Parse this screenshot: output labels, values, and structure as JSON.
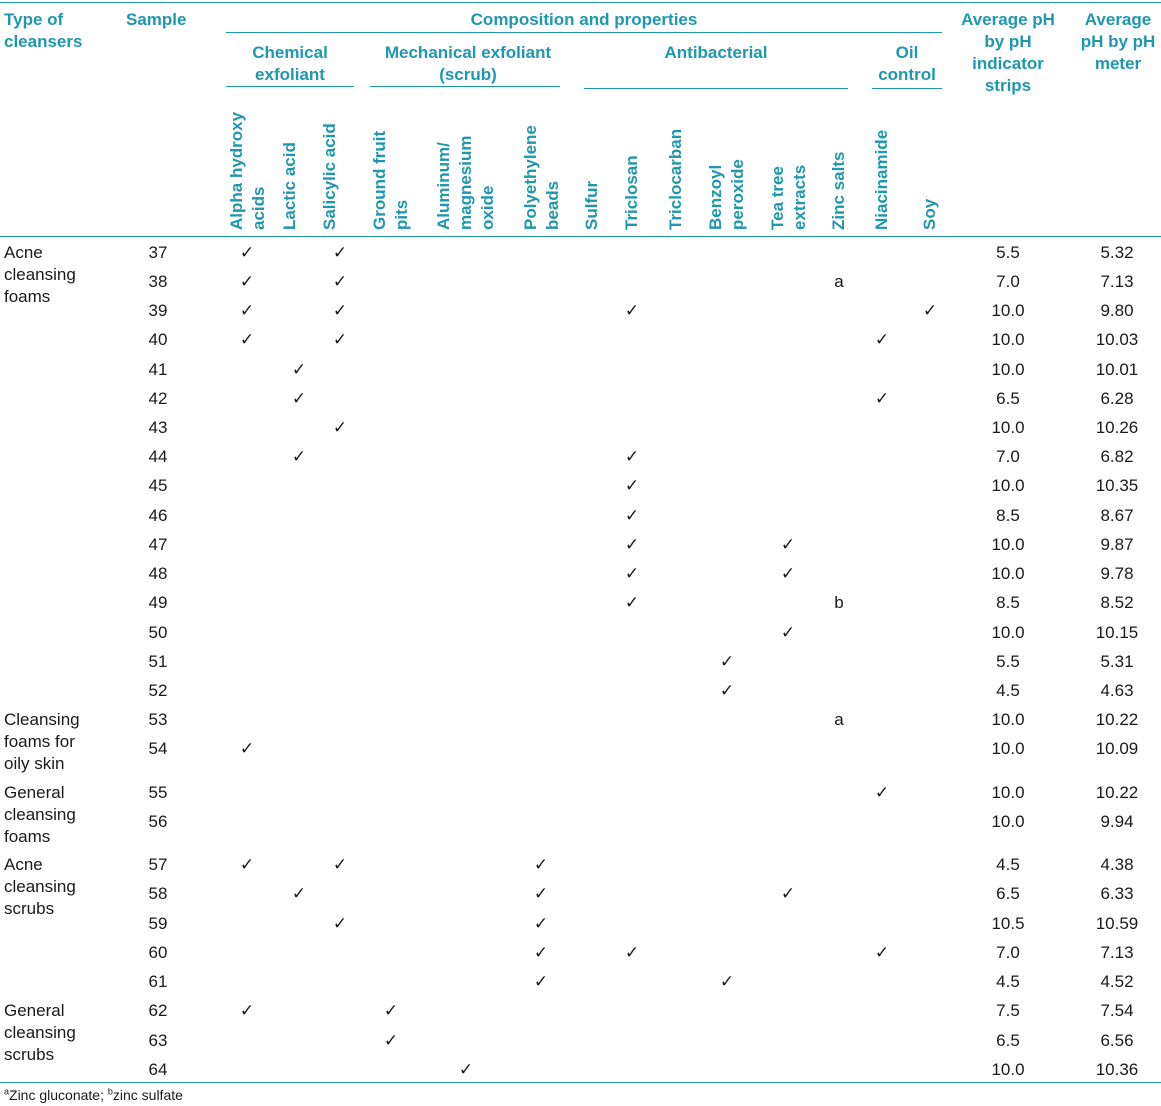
{
  "header": {
    "type_col": "Type of cleansers",
    "sample_col": "Sample",
    "composition": "Composition and properties",
    "groups": {
      "chemical": "Chemical exfoliant",
      "mechanical": "Mechanical exfoliant (scrub)",
      "antibacterial": "Antibacterial",
      "oil": "Oil control"
    },
    "ph_strips": "Average pH by pH indicator strips",
    "ph_meter": "Average pH by pH meter"
  },
  "ingredients": [
    "Alpha hydroxy acids",
    "Lactic acid",
    "Salicylic acid",
    "Ground fruit pits",
    "Aluminum/ magnesium oxide",
    "Polyethylene beads",
    "Sulfur",
    "Triclosan",
    "Triclocarban",
    "Benzoyl peroxide",
    "Tea tree extracts",
    "Zinc salts",
    "Niacinamide",
    "Soy"
  ],
  "check_mark": "✓",
  "types": [
    "Acne cleansing foams",
    "Cleansing foams for oily skin",
    "General cleansing foams",
    "Acne cleansing scrubs",
    "General cleansing scrubs"
  ],
  "rows": [
    {
      "sample": "37",
      "marks": [
        "✓",
        "",
        "✓",
        "",
        "",
        "",
        "",
        "",
        "",
        "",
        "",
        "",
        "",
        ""
      ],
      "ph_strips": "5.5",
      "ph_meter": "5.32"
    },
    {
      "sample": "38",
      "marks": [
        "✓",
        "",
        "✓",
        "",
        "",
        "",
        "",
        "",
        "",
        "",
        "",
        "a",
        "",
        ""
      ],
      "ph_strips": "7.0",
      "ph_meter": "7.13"
    },
    {
      "sample": "39",
      "marks": [
        "✓",
        "",
        "✓",
        "",
        "",
        "",
        "",
        "✓",
        "",
        "",
        "",
        "",
        "",
        "✓"
      ],
      "ph_strips": "10.0",
      "ph_meter": "9.80"
    },
    {
      "sample": "40",
      "marks": [
        "✓",
        "",
        "✓",
        "",
        "",
        "",
        "",
        "",
        "",
        "",
        "",
        "",
        "✓",
        ""
      ],
      "ph_strips": "10.0",
      "ph_meter": "10.03"
    },
    {
      "sample": "41",
      "marks": [
        "",
        "✓",
        "",
        "",
        "",
        "",
        "",
        "",
        "",
        "",
        "",
        "",
        "",
        ""
      ],
      "ph_strips": "10.0",
      "ph_meter": "10.01"
    },
    {
      "sample": "42",
      "marks": [
        "",
        "✓",
        "",
        "",
        "",
        "",
        "",
        "",
        "",
        "",
        "",
        "",
        "✓",
        ""
      ],
      "ph_strips": "6.5",
      "ph_meter": "6.28"
    },
    {
      "sample": "43",
      "marks": [
        "",
        "",
        "✓",
        "",
        "",
        "",
        "",
        "",
        "",
        "",
        "",
        "",
        "",
        ""
      ],
      "ph_strips": "10.0",
      "ph_meter": "10.26"
    },
    {
      "sample": "44",
      "marks": [
        "",
        "✓",
        "",
        "",
        "",
        "",
        "",
        "✓",
        "",
        "",
        "",
        "",
        "",
        ""
      ],
      "ph_strips": "7.0",
      "ph_meter": "6.82"
    },
    {
      "sample": "45",
      "marks": [
        "",
        "",
        "",
        "",
        "",
        "",
        "",
        "✓",
        "",
        "",
        "",
        "",
        "",
        ""
      ],
      "ph_strips": "10.0",
      "ph_meter": "10.35"
    },
    {
      "sample": "46",
      "marks": [
        "",
        "",
        "",
        "",
        "",
        "",
        "",
        "✓",
        "",
        "",
        "",
        "",
        "",
        ""
      ],
      "ph_strips": "8.5",
      "ph_meter": "8.67"
    },
    {
      "sample": "47",
      "marks": [
        "",
        "",
        "",
        "",
        "",
        "",
        "",
        "✓",
        "",
        "",
        "✓",
        "",
        "",
        ""
      ],
      "ph_strips": "10.0",
      "ph_meter": "9.87"
    },
    {
      "sample": "48",
      "marks": [
        "",
        "",
        "",
        "",
        "",
        "",
        "",
        "✓",
        "",
        "",
        "✓",
        "",
        "",
        ""
      ],
      "ph_strips": "10.0",
      "ph_meter": "9.78"
    },
    {
      "sample": "49",
      "marks": [
        "",
        "",
        "",
        "",
        "",
        "",
        "",
        "✓",
        "",
        "",
        "",
        "b",
        "",
        ""
      ],
      "ph_strips": "8.5",
      "ph_meter": "8.52"
    },
    {
      "sample": "50",
      "marks": [
        "",
        "",
        "",
        "",
        "",
        "",
        "",
        "",
        "",
        "",
        "✓",
        "",
        "",
        ""
      ],
      "ph_strips": "10.0",
      "ph_meter": "10.15"
    },
    {
      "sample": "51",
      "marks": [
        "",
        "",
        "",
        "",
        "",
        "",
        "",
        "",
        "",
        "✓",
        "",
        "",
        "",
        ""
      ],
      "ph_strips": "5.5",
      "ph_meter": "5.31"
    },
    {
      "sample": "52",
      "marks": [
        "",
        "",
        "",
        "",
        "",
        "",
        "",
        "",
        "",
        "✓",
        "",
        "",
        "",
        ""
      ],
      "ph_strips": "4.5",
      "ph_meter": "4.63"
    },
    {
      "sample": "53",
      "marks": [
        "",
        "",
        "",
        "",
        "",
        "",
        "",
        "",
        "",
        "",
        "",
        "a",
        "",
        ""
      ],
      "ph_strips": "10.0",
      "ph_meter": "10.22"
    },
    {
      "sample": "54",
      "marks": [
        "✓",
        "",
        "",
        "",
        "",
        "",
        "",
        "",
        "",
        "",
        "",
        "",
        "",
        ""
      ],
      "ph_strips": "10.0",
      "ph_meter": "10.09"
    },
    {
      "sample": "55",
      "marks": [
        "",
        "",
        "",
        "",
        "",
        "",
        "",
        "",
        "",
        "",
        "",
        "",
        "✓",
        ""
      ],
      "ph_strips": "10.0",
      "ph_meter": "10.22"
    },
    {
      "sample": "56",
      "marks": [
        "",
        "",
        "",
        "",
        "",
        "",
        "",
        "",
        "",
        "",
        "",
        "",
        "",
        ""
      ],
      "ph_strips": "10.0",
      "ph_meter": "9.94"
    },
    {
      "sample": "57",
      "marks": [
        "✓",
        "",
        "✓",
        "",
        "",
        "✓",
        "",
        "",
        "",
        "",
        "",
        "",
        "",
        ""
      ],
      "ph_strips": "4.5",
      "ph_meter": "4.38"
    },
    {
      "sample": "58",
      "marks": [
        "",
        "✓",
        "",
        "",
        "",
        "✓",
        "",
        "",
        "",
        "",
        "✓",
        "",
        "",
        ""
      ],
      "ph_strips": "6.5",
      "ph_meter": "6.33"
    },
    {
      "sample": "59",
      "marks": [
        "",
        "",
        "✓",
        "",
        "",
        "✓",
        "",
        "",
        "",
        "",
        "",
        "",
        "",
        ""
      ],
      "ph_strips": "10.5",
      "ph_meter": "10.59"
    },
    {
      "sample": "60",
      "marks": [
        "",
        "",
        "",
        "",
        "",
        "✓",
        "",
        "✓",
        "",
        "",
        "",
        "",
        "✓",
        ""
      ],
      "ph_strips": "7.0",
      "ph_meter": "7.13"
    },
    {
      "sample": "61",
      "marks": [
        "",
        "",
        "",
        "",
        "",
        "✓",
        "",
        "",
        "",
        "✓",
        "",
        "",
        "",
        ""
      ],
      "ph_strips": "4.5",
      "ph_meter": "4.52"
    },
    {
      "sample": "62",
      "marks": [
        "✓",
        "",
        "",
        "✓",
        "",
        "",
        "",
        "",
        "",
        "",
        "",
        "",
        "",
        ""
      ],
      "ph_strips": "7.5",
      "ph_meter": "7.54"
    },
    {
      "sample": "63",
      "marks": [
        "",
        "",
        "",
        "✓",
        "",
        "",
        "",
        "",
        "",
        "",
        "",
        "",
        "",
        ""
      ],
      "ph_strips": "6.5",
      "ph_meter": "6.56"
    },
    {
      "sample": "64",
      "marks": [
        "",
        "",
        "",
        "",
        "✓",
        "",
        "",
        "",
        "",
        "",
        "",
        "",
        "",
        ""
      ],
      "ph_strips": "10.0",
      "ph_meter": "10.36"
    }
  ],
  "footnote": {
    "a_marker": "a",
    "a_text": "Zinc gluconate; ",
    "b_marker": "b",
    "b_text": "zinc sulfate"
  }
}
